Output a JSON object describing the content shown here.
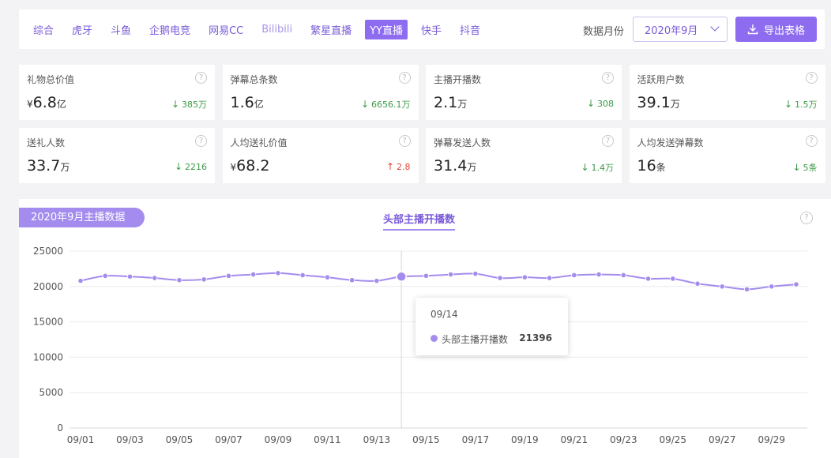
{
  "toolbar": {
    "platforms": [
      "综合",
      "虎牙",
      "斗鱼",
      "企鹅电竞",
      "网易CC",
      "Bilibili",
      "繁星直播",
      "YY直播",
      "快手",
      "抖音"
    ],
    "active_platform": "YY直播",
    "month_label": "数据月份",
    "month_value": "2020年9月",
    "export_label": "导出表格"
  },
  "cards": [
    {
      "label": "礼物总价值",
      "prefix": "¥",
      "value": "6.8",
      "unit": "亿",
      "delta": "385万",
      "direction": "down"
    },
    {
      "label": "弹幕总条数",
      "prefix": "",
      "value": "1.6",
      "unit": "亿",
      "delta": "6656.1万",
      "direction": "down"
    },
    {
      "label": "主播开播数",
      "prefix": "",
      "value": "2.1",
      "unit": "万",
      "delta": "308",
      "direction": "down"
    },
    {
      "label": "活跃用户数",
      "prefix": "",
      "value": "39.1",
      "unit": "万",
      "delta": "1.5万",
      "direction": "down"
    },
    {
      "label": "送礼人数",
      "prefix": "",
      "value": "33.7",
      "unit": "万",
      "delta": "2216",
      "direction": "down"
    },
    {
      "label": "人均送礼价值",
      "prefix": "¥",
      "value": "68.2",
      "unit": "",
      "delta": "2.8",
      "direction": "up"
    },
    {
      "label": "弹幕发送人数",
      "prefix": "",
      "value": "31.4",
      "unit": "万",
      "delta": "1.4万",
      "direction": "down"
    },
    {
      "label": "人均发送弹幕数",
      "prefix": "",
      "value": "16",
      "unit": "条",
      "delta": "5条",
      "direction": "down"
    }
  ],
  "chart_panel": {
    "badge": "2020年9月主播数据",
    "series_tab": "头部主播开播数",
    "help": "?"
  },
  "tooltip": {
    "date": "09/14",
    "series": "头部主播开播数",
    "value": "21396"
  },
  "colors": {
    "accent": "#8e6cf0",
    "line": "#a48cee",
    "down": "#3a9b48",
    "up": "#e0463a"
  },
  "chart_data": {
    "type": "line",
    "title": "",
    "xlabel": "",
    "ylabel": "",
    "ylim": [
      0,
      25000
    ],
    "yticks": [
      0,
      5000,
      10000,
      15000,
      20000,
      25000
    ],
    "xtick_labels": [
      "09/01",
      "09/03",
      "09/05",
      "09/07",
      "09/09",
      "09/11",
      "09/13",
      "09/15",
      "09/17",
      "09/19",
      "09/21",
      "09/23",
      "09/25",
      "09/27",
      "09/29"
    ],
    "grid": true,
    "x": [
      "09/01",
      "09/02",
      "09/03",
      "09/04",
      "09/05",
      "09/06",
      "09/07",
      "09/08",
      "09/09",
      "09/10",
      "09/11",
      "09/12",
      "09/13",
      "09/14",
      "09/15",
      "09/16",
      "09/17",
      "09/18",
      "09/19",
      "09/20",
      "09/21",
      "09/22",
      "09/23",
      "09/24",
      "09/25",
      "09/26",
      "09/27",
      "09/28",
      "09/29",
      "09/30"
    ],
    "series": [
      {
        "name": "头部主播开播数",
        "values": [
          20800,
          21500,
          21400,
          21200,
          20900,
          21000,
          21500,
          21700,
          21900,
          21600,
          21300,
          20900,
          20800,
          21396,
          21500,
          21700,
          21800,
          21200,
          21300,
          21200,
          21600,
          21700,
          21600,
          21100,
          21100,
          20400,
          20000,
          19600,
          20000,
          20300
        ]
      }
    ],
    "highlight_index": 13
  }
}
